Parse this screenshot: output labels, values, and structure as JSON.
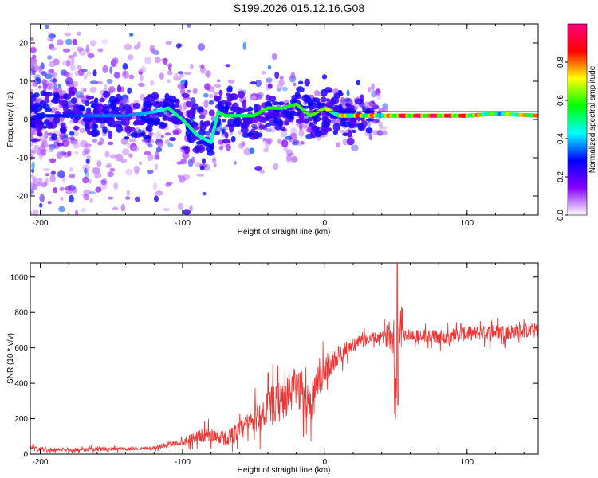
{
  "title": "S199.2026.015.12.16.G08",
  "colors": {
    "snr_line": "#ee3333",
    "axis": "#000000",
    "spectrogram_ridge": "#00ffcc",
    "spectrogram_peak": "#ff2200"
  },
  "chart_data": [
    {
      "type": "heatmap",
      "name": "spectrogram",
      "xlabel": "Height of straight line (km)",
      "ylabel": "Frequency (Hz)",
      "xlim": [
        -207,
        150
      ],
      "ylim": [
        -25,
        25
      ],
      "x_ticks": [
        -200,
        -100,
        0,
        100
      ],
      "x_tick_labels": [
        "-200",
        "-100",
        "0",
        "100"
      ],
      "y_ticks": [
        20,
        10,
        0,
        -10,
        -20
      ],
      "y_tick_labels": [
        "20",
        "10",
        "0",
        "-10",
        "-20"
      ],
      "colorbar": {
        "label": "Normalized spectral amplitude",
        "range": [
          0,
          1
        ],
        "ticks": [
          0.0,
          0.2,
          0.4,
          0.6,
          0.8
        ],
        "tick_labels": [
          "0.0",
          "0.2",
          "0.4",
          "0.6",
          "0.8"
        ],
        "colormap": [
          "#ffffff",
          "#8800ff",
          "#0000ff",
          "#00ffff",
          "#00ff00",
          "#ffff00",
          "#ff0000",
          "#ff0080"
        ]
      },
      "ridge": {
        "x": [
          -200,
          -180,
          -160,
          -140,
          -120,
          -110,
          -100,
          -90,
          -80,
          -75,
          -70,
          -60,
          -50,
          -40,
          -30,
          -20,
          -10,
          0,
          10,
          20,
          30,
          40,
          50,
          60,
          80,
          100,
          120,
          150
        ],
        "y": [
          1,
          1,
          1,
          1,
          2,
          3,
          0,
          -4,
          -6,
          2,
          1,
          1,
          1,
          3,
          3,
          4,
          1,
          3,
          1,
          1,
          1,
          1,
          1,
          1,
          1,
          1,
          1.5,
          1
        ],
        "amplitude": [
          0.3,
          0.3,
          0.35,
          0.35,
          0.4,
          0.5,
          0.5,
          0.5,
          0.45,
          0.5,
          0.55,
          0.5,
          0.55,
          0.6,
          0.55,
          0.6,
          0.6,
          0.65,
          0.7,
          0.75,
          0.85,
          0.6,
          0.9,
          0.9,
          0.95,
          0.85,
          0.55,
          0.85
        ]
      }
    },
    {
      "type": "line",
      "name": "snr",
      "xlabel": "Height of straight line (km)",
      "ylabel": "SNR (10 * v/v)",
      "xlim": [
        -207,
        150
      ],
      "ylim": [
        0,
        1080
      ],
      "x_ticks": [
        -200,
        -100,
        0,
        100
      ],
      "x_tick_labels": [
        "-200",
        "-100",
        "0",
        "100"
      ],
      "y_ticks": [
        0,
        200,
        400,
        600,
        800,
        1000
      ],
      "y_tick_labels": [
        "0",
        "200",
        "400",
        "600",
        "800",
        "1000"
      ],
      "series": [
        {
          "name": "SNR",
          "x": [
            -207,
            -180,
            -150,
            -120,
            -100,
            -90,
            -80,
            -70,
            -60,
            -50,
            -40,
            -30,
            -20,
            -10,
            0,
            10,
            20,
            30,
            40,
            48,
            50,
            52,
            55,
            60,
            80,
            100,
            120,
            150
          ],
          "values": [
            30,
            25,
            28,
            35,
            70,
            100,
            110,
            90,
            130,
            190,
            260,
            300,
            380,
            300,
            480,
            560,
            620,
            650,
            660,
            680,
            400,
            750,
            680,
            670,
            660,
            680,
            690,
            700
          ],
          "noise_amplitude": [
            20,
            15,
            15,
            15,
            30,
            50,
            60,
            60,
            80,
            110,
            150,
            170,
            180,
            160,
            120,
            80,
            50,
            50,
            40,
            150,
            250,
            300,
            60,
            50,
            60,
            60,
            60,
            60
          ]
        }
      ]
    }
  ]
}
